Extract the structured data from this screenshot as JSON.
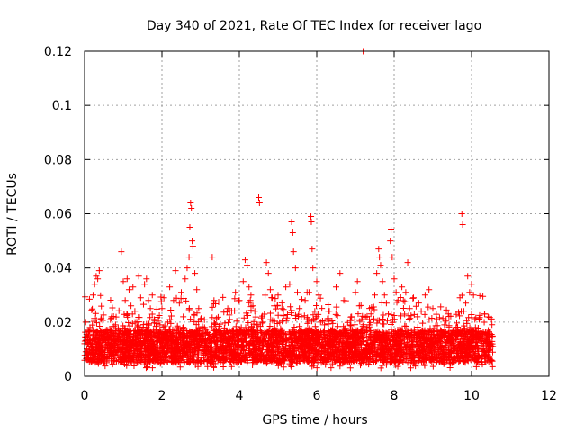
{
  "chart_data": {
    "type": "scatter",
    "title": "Day 340 of 2021, Rate Of TEC Index for receiver lago",
    "xlabel": "GPS time / hours",
    "ylabel": "ROTI / TECUs",
    "xlim": [
      0,
      12
    ],
    "ylim": [
      0,
      0.12
    ],
    "x_ticks": [
      "0",
      "2",
      "4",
      "6",
      "8",
      "10",
      "12"
    ],
    "y_ticks": [
      "0",
      "0.02",
      "0.04",
      "0.06",
      "0.08",
      "0.1",
      "0.12"
    ],
    "grid": true,
    "marker": "plus",
    "color": "#ff0000",
    "series": [
      {
        "name": "ROTI",
        "note": "dense band of points 0.003–0.02 TECU from 0 to 10.55 h; representative sampled points listed",
        "points": [
          [
            0.0,
            0.012
          ],
          [
            0.03,
            0.02
          ],
          [
            0.06,
            0.009
          ],
          [
            0.1,
            0.015
          ],
          [
            0.14,
            0.018
          ],
          [
            0.18,
            0.011
          ],
          [
            0.22,
            0.03
          ],
          [
            0.26,
            0.034
          ],
          [
            0.3,
            0.037
          ],
          [
            0.34,
            0.036
          ],
          [
            0.38,
            0.039
          ],
          [
            0.42,
            0.021
          ],
          [
            0.46,
            0.008
          ],
          [
            0.5,
            0.005
          ],
          [
            0.55,
            0.014
          ],
          [
            0.6,
            0.017
          ],
          [
            0.65,
            0.01
          ],
          [
            0.7,
            0.022
          ],
          [
            0.75,
            0.013
          ],
          [
            0.8,
            0.019
          ],
          [
            0.85,
            0.011
          ],
          [
            0.9,
            0.016
          ],
          [
            0.95,
            0.046
          ],
          [
            1.0,
            0.035
          ],
          [
            1.05,
            0.028
          ],
          [
            1.1,
            0.036
          ],
          [
            1.15,
            0.032
          ],
          [
            1.2,
            0.026
          ],
          [
            1.25,
            0.033
          ],
          [
            1.3,
            0.024
          ],
          [
            1.35,
            0.02
          ],
          [
            1.4,
            0.037
          ],
          [
            1.45,
            0.029
          ],
          [
            1.5,
            0.012
          ],
          [
            1.55,
            0.034
          ],
          [
            1.6,
            0.036
          ],
          [
            1.65,
            0.028
          ],
          [
            1.7,
            0.025
          ],
          [
            1.75,
            0.03
          ],
          [
            1.8,
            0.021
          ],
          [
            1.85,
            0.017
          ],
          [
            1.9,
            0.013
          ],
          [
            1.95,
            0.019
          ],
          [
            2.0,
            0.025
          ],
          [
            2.05,
            0.029
          ],
          [
            2.1,
            0.014
          ],
          [
            2.15,
            0.02
          ],
          [
            2.2,
            0.033
          ],
          [
            2.25,
            0.015
          ],
          [
            2.3,
            0.028
          ],
          [
            2.35,
            0.039
          ],
          [
            2.4,
            0.018
          ],
          [
            2.45,
            0.027
          ],
          [
            2.5,
            0.031
          ],
          [
            2.55,
            0.022
          ],
          [
            2.6,
            0.036
          ],
          [
            2.65,
            0.04
          ],
          [
            2.7,
            0.044
          ],
          [
            2.72,
            0.055
          ],
          [
            2.74,
            0.064
          ],
          [
            2.76,
            0.062
          ],
          [
            2.78,
            0.05
          ],
          [
            2.8,
            0.048
          ],
          [
            2.85,
            0.038
          ],
          [
            2.9,
            0.032
          ],
          [
            2.95,
            0.025
          ],
          [
            3.0,
            0.021
          ],
          [
            3.05,
            0.015
          ],
          [
            3.1,
            0.018
          ],
          [
            3.15,
            0.012
          ],
          [
            3.2,
            0.014
          ],
          [
            3.3,
            0.044
          ],
          [
            3.4,
            0.011
          ],
          [
            3.5,
            0.013
          ],
          [
            3.6,
            0.016
          ],
          [
            3.7,
            0.025
          ],
          [
            3.75,
            0.021
          ],
          [
            3.8,
            0.012
          ],
          [
            3.9,
            0.031
          ],
          [
            4.0,
            0.028
          ],
          [
            4.05,
            0.018
          ],
          [
            4.1,
            0.035
          ],
          [
            4.15,
            0.043
          ],
          [
            4.2,
            0.041
          ],
          [
            4.25,
            0.033
          ],
          [
            4.3,
            0.03
          ],
          [
            4.35,
            0.026
          ],
          [
            4.4,
            0.024
          ],
          [
            4.45,
            0.019
          ],
          [
            4.5,
            0.066
          ],
          [
            4.52,
            0.064
          ],
          [
            4.6,
            0.02
          ],
          [
            4.7,
            0.042
          ],
          [
            4.75,
            0.038
          ],
          [
            4.8,
            0.032
          ],
          [
            4.85,
            0.029
          ],
          [
            4.9,
            0.026
          ],
          [
            5.0,
            0.03
          ],
          [
            5.1,
            0.025
          ],
          [
            5.2,
            0.033
          ],
          [
            5.3,
            0.034
          ],
          [
            5.35,
            0.057
          ],
          [
            5.38,
            0.053
          ],
          [
            5.4,
            0.046
          ],
          [
            5.45,
            0.04
          ],
          [
            5.5,
            0.031
          ],
          [
            5.55,
            0.025
          ],
          [
            5.6,
            0.022
          ],
          [
            5.7,
            0.028
          ],
          [
            5.75,
            0.031
          ],
          [
            5.8,
            0.031
          ],
          [
            5.85,
            0.059
          ],
          [
            5.86,
            0.057
          ],
          [
            5.88,
            0.047
          ],
          [
            5.9,
            0.04
          ],
          [
            5.95,
            0.024
          ],
          [
            6.0,
            0.035
          ],
          [
            6.05,
            0.03
          ],
          [
            6.1,
            0.02
          ],
          [
            6.2,
            0.019
          ],
          [
            6.3,
            0.024
          ],
          [
            6.4,
            0.017
          ],
          [
            6.5,
            0.033
          ],
          [
            6.6,
            0.038
          ],
          [
            6.7,
            0.028
          ],
          [
            6.8,
            0.015
          ],
          [
            6.9,
            0.022
          ],
          [
            7.0,
            0.031
          ],
          [
            7.05,
            0.035
          ],
          [
            7.1,
            0.026
          ],
          [
            7.2,
            0.12
          ],
          [
            7.3,
            0.018
          ],
          [
            7.4,
            0.023
          ],
          [
            7.5,
            0.03
          ],
          [
            7.55,
            0.038
          ],
          [
            7.6,
            0.047
          ],
          [
            7.62,
            0.044
          ],
          [
            7.65,
            0.041
          ],
          [
            7.7,
            0.035
          ],
          [
            7.75,
            0.03
          ],
          [
            7.8,
            0.027
          ],
          [
            7.85,
            0.023
          ],
          [
            7.9,
            0.05
          ],
          [
            7.92,
            0.054
          ],
          [
            7.95,
            0.044
          ],
          [
            8.0,
            0.036
          ],
          [
            8.05,
            0.031
          ],
          [
            8.1,
            0.028
          ],
          [
            8.2,
            0.033
          ],
          [
            8.3,
            0.031
          ],
          [
            8.35,
            0.042
          ],
          [
            8.4,
            0.025
          ],
          [
            8.5,
            0.029
          ],
          [
            8.6,
            0.022
          ],
          [
            8.7,
            0.024
          ],
          [
            8.8,
            0.03
          ],
          [
            8.9,
            0.032
          ],
          [
            9.0,
            0.025
          ],
          [
            9.1,
            0.021
          ],
          [
            9.2,
            0.017
          ],
          [
            9.3,
            0.019
          ],
          [
            9.4,
            0.023
          ],
          [
            9.5,
            0.016
          ],
          [
            9.6,
            0.018
          ],
          [
            9.7,
            0.029
          ],
          [
            9.75,
            0.06
          ],
          [
            9.77,
            0.056
          ],
          [
            9.8,
            0.024
          ],
          [
            9.85,
            0.027
          ],
          [
            9.9,
            0.037
          ],
          [
            9.95,
            0.031
          ],
          [
            10.0,
            0.034
          ],
          [
            10.05,
            0.03
          ],
          [
            10.1,
            0.018
          ],
          [
            10.2,
            0.021
          ],
          [
            10.3,
            0.016
          ],
          [
            10.4,
            0.013
          ],
          [
            10.5,
            0.012
          ],
          [
            10.55,
            0.011
          ]
        ]
      }
    ]
  }
}
